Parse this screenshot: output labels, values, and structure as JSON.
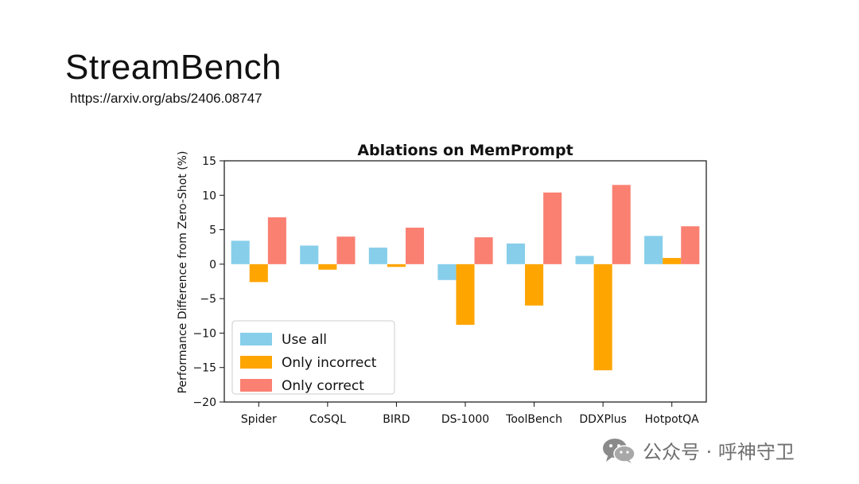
{
  "slide": {
    "title": "StreamBench",
    "link": "https://arxiv.org/abs/2406.08747"
  },
  "chart_data": {
    "type": "bar",
    "title": "Ablations on MemPrompt",
    "xlabel": "",
    "ylabel": "Performance Difference from Zero-Shot (%)",
    "ylim": [
      -20,
      15
    ],
    "yticks": [
      15,
      10,
      5,
      0,
      -5,
      -10,
      -15,
      -20
    ],
    "ytick_labels": [
      "15",
      "10",
      "5",
      "0",
      "−5",
      "−10",
      "−15",
      "−20"
    ],
    "categories": [
      "Spider",
      "CoSQL",
      "BIRD",
      "DS-1000",
      "ToolBench",
      "DDXPlus",
      "HotpotQA"
    ],
    "series": [
      {
        "name": "Use all",
        "color": "#87ceeb",
        "values": [
          3.4,
          2.7,
          2.4,
          -2.3,
          3.0,
          1.2,
          4.1
        ]
      },
      {
        "name": "Only incorrect",
        "color": "#ffa500",
        "values": [
          -2.6,
          -0.8,
          -0.4,
          -8.8,
          -6.0,
          -15.4,
          0.9
        ]
      },
      {
        "name": "Only correct",
        "color": "#fa8072",
        "values": [
          6.8,
          4.0,
          5.3,
          3.9,
          10.4,
          11.5,
          5.5
        ]
      }
    ],
    "legend_position": "lower-left",
    "grid": false
  },
  "watermark": {
    "icon": "wechat-icon",
    "text": "公众号 · 呼神守卫"
  }
}
